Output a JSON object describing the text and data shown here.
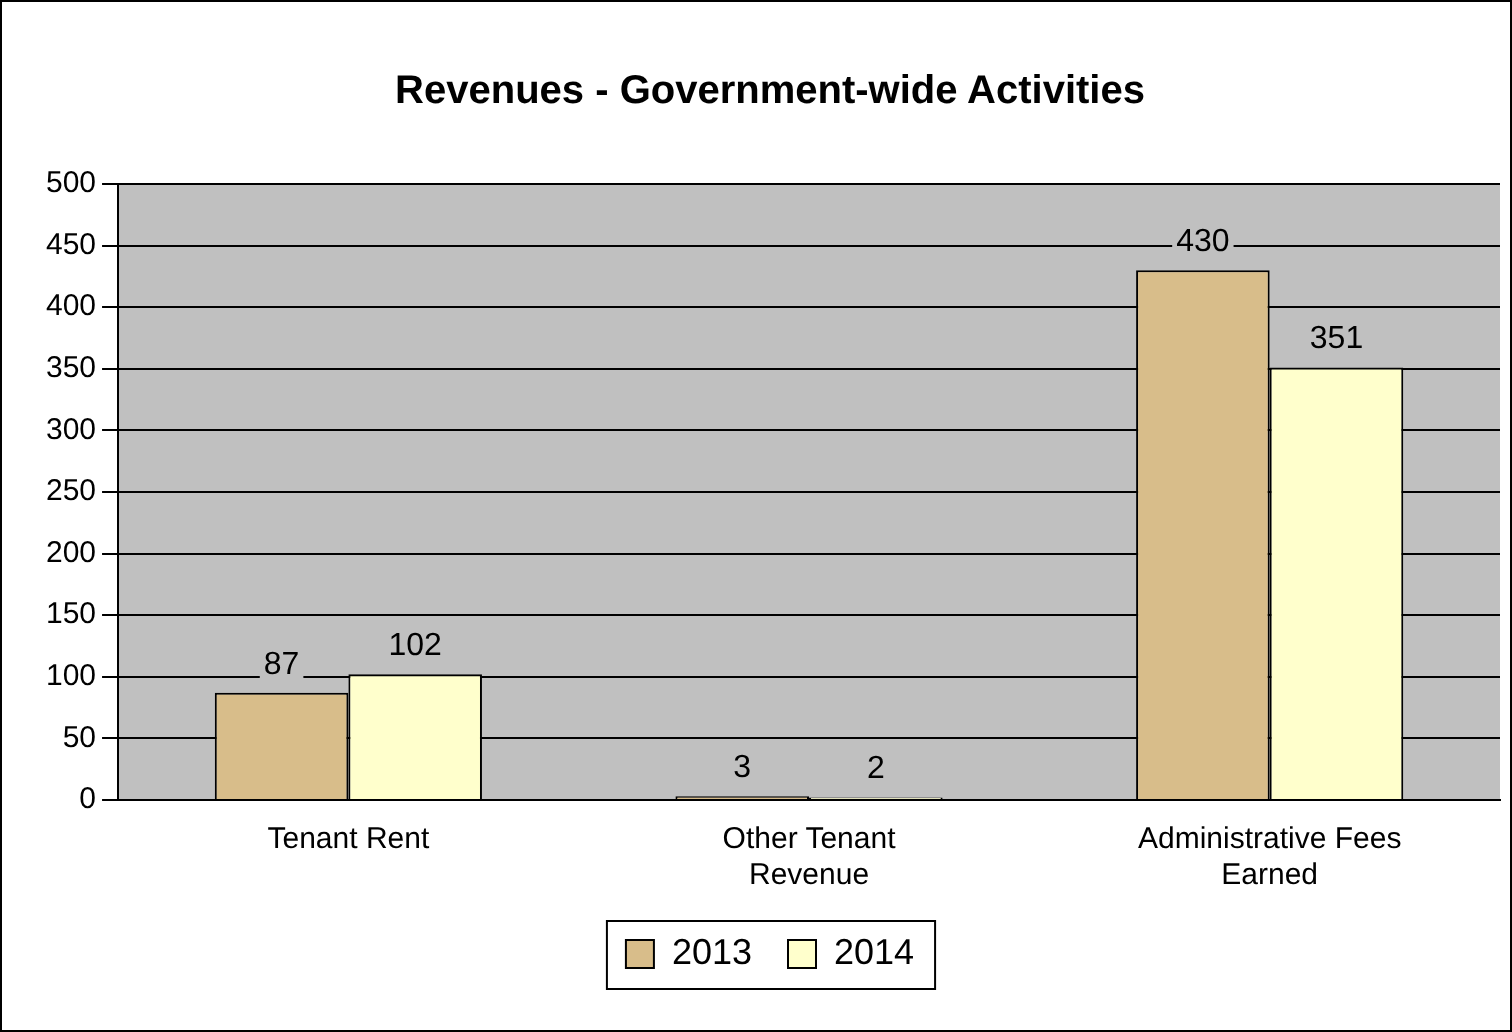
{
  "chart_data": {
    "type": "bar",
    "title": "Revenues - Government-wide Activities",
    "categories": [
      "Tenant Rent",
      "Other Tenant Revenue",
      "Administrative Fees Earned"
    ],
    "series": [
      {
        "name": "2013",
        "color": "#d8bd8a",
        "values": [
          87,
          3,
          430
        ]
      },
      {
        "name": "2014",
        "color": "#ffffcc",
        "values": [
          102,
          2,
          351
        ]
      }
    ],
    "ylim": [
      0,
      500
    ],
    "yticks": [
      0,
      50,
      100,
      150,
      200,
      250,
      300,
      350,
      400,
      450,
      500
    ],
    "grid": "y",
    "legend": "bottom",
    "data_labels": true
  }
}
